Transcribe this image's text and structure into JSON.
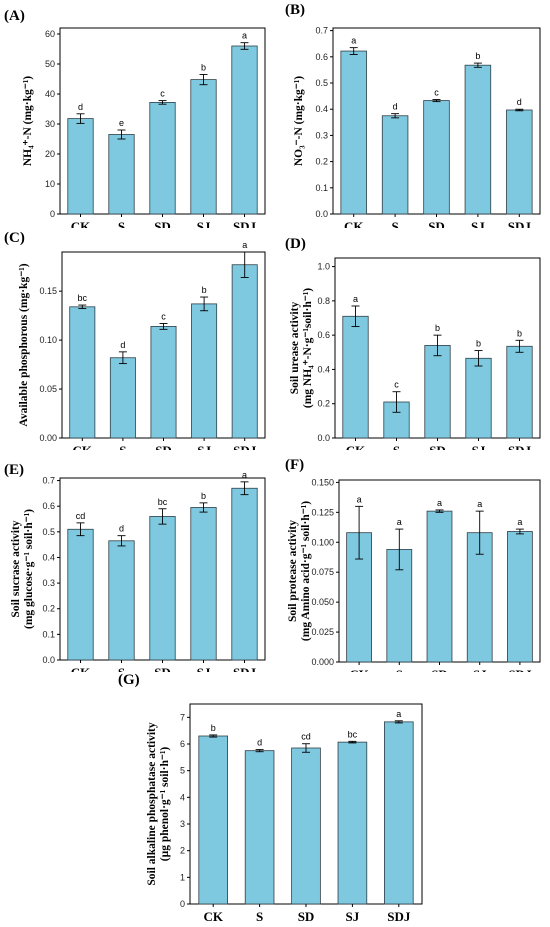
{
  "figure": {
    "bar_color": "#7EC8E0",
    "bar_edge_color": "#2F3F46",
    "axis_color": "#000000"
  },
  "chart_data": [
    {
      "panel_label": "(A)",
      "type": "bar",
      "ylabel_lines": [
        "NH₄⁺-N (mg·kg⁻¹)"
      ],
      "categories": [
        "CK",
        "S",
        "SD",
        "SJ",
        "SDJ"
      ],
      "values": [
        31.8,
        26.5,
        37.2,
        44.8,
        56.0
      ],
      "errors": [
        1.6,
        1.5,
        0.6,
        1.7,
        1.1
      ],
      "sig_letters": [
        "d",
        "e",
        "c",
        "b",
        "a"
      ],
      "ylim": [
        0,
        62
      ],
      "yticks": [
        0,
        10,
        20,
        30,
        40,
        50,
        60
      ],
      "ytick_labels": [
        "0",
        "10",
        "20",
        "30",
        "40",
        "50",
        "60"
      ],
      "grid": false
    },
    {
      "panel_label": "(B)",
      "type": "bar",
      "ylabel_lines": [
        "NO₃⁻-N (mg·kg⁻¹)"
      ],
      "categories": [
        "CK",
        "S",
        "SD",
        "SJ",
        "SDJ"
      ],
      "values": [
        0.622,
        0.375,
        0.433,
        0.568,
        0.397
      ],
      "errors": [
        0.013,
        0.008,
        0.004,
        0.008,
        0.003
      ],
      "sig_letters": [
        "a",
        "d",
        "c",
        "b",
        "d"
      ],
      "ylim": [
        0,
        0.71
      ],
      "yticks": [
        0.0,
        0.1,
        0.2,
        0.3,
        0.4,
        0.5,
        0.6,
        0.7
      ],
      "ytick_labels": [
        "0.0",
        "0.1",
        "0.2",
        "0.3",
        "0.4",
        "0.5",
        "0.6",
        "0.7"
      ],
      "grid": false
    },
    {
      "panel_label": "(C)",
      "type": "bar",
      "ylabel_lines": [
        "Available phosphorous (mg·kg⁻¹)"
      ],
      "categories": [
        "CK",
        "S",
        "SD",
        "SJ",
        "SDJ"
      ],
      "values": [
        0.134,
        0.082,
        0.114,
        0.137,
        0.177
      ],
      "errors": [
        0.0018,
        0.006,
        0.003,
        0.007,
        0.013
      ],
      "sig_letters": [
        "bc",
        "d",
        "c",
        "b",
        "a"
      ],
      "ylim": [
        0,
        0.19
      ],
      "yticks": [
        0.0,
        0.05,
        0.1,
        0.15
      ],
      "ytick_labels": [
        "0.00",
        "0.05",
        "0.10",
        "0.15"
      ],
      "grid": false
    },
    {
      "panel_label": "(D)",
      "type": "bar",
      "ylabel_lines": [
        "Soil urease activity",
        "(mg NH₄⁺-N·g⁻¹soil·h⁻¹)"
      ],
      "categories": [
        "CK",
        "S",
        "SD",
        "SJ",
        "SDJ"
      ],
      "values": [
        0.71,
        0.21,
        0.54,
        0.465,
        0.535
      ],
      "errors": [
        0.06,
        0.06,
        0.06,
        0.045,
        0.035
      ],
      "sig_letters": [
        "a",
        "c",
        "b",
        "b",
        "b"
      ],
      "ylim": [
        0,
        1.05
      ],
      "yticks": [
        0.0,
        0.2,
        0.4,
        0.6,
        0.8,
        1.0
      ],
      "ytick_labels": [
        "0.0",
        "0.2",
        "0.4",
        "0.6",
        "0.8",
        "1.0"
      ],
      "grid": false
    },
    {
      "panel_label": "(E)",
      "type": "bar",
      "ylabel_lines": [
        "Soil sucrase activity",
        "(mg glucose·g⁻¹ soil·h⁻¹)"
      ],
      "categories": [
        "CK",
        "S",
        "SD",
        "SJ",
        "SDJ"
      ],
      "values": [
        0.51,
        0.465,
        0.56,
        0.595,
        0.67
      ],
      "errors": [
        0.025,
        0.02,
        0.03,
        0.018,
        0.025
      ],
      "sig_letters": [
        "cd",
        "d",
        "bc",
        "b",
        "a"
      ],
      "ylim": [
        0,
        0.71
      ],
      "yticks": [
        0.0,
        0.1,
        0.2,
        0.3,
        0.4,
        0.5,
        0.6,
        0.7
      ],
      "ytick_labels": [
        "0.0",
        "0.1",
        "0.2",
        "0.3",
        "0.4",
        "0.5",
        "0.6",
        "0.7"
      ],
      "grid": false
    },
    {
      "panel_label": "(F)",
      "type": "bar",
      "ylabel_lines": [
        "Soil protease activity",
        "(mg Amino acid·g⁻¹ soil·h⁻¹)"
      ],
      "categories": [
        "CK",
        "S",
        "SD",
        "SJ",
        "SDJ"
      ],
      "values": [
        0.108,
        0.094,
        0.126,
        0.108,
        0.109
      ],
      "errors": [
        0.022,
        0.017,
        0.001,
        0.018,
        0.002
      ],
      "sig_letters": [
        "a",
        "a",
        "a",
        "a",
        "a"
      ],
      "ylim": [
        0,
        0.152
      ],
      "yticks": [
        0.0,
        0.025,
        0.05,
        0.075,
        0.1,
        0.125,
        0.15
      ],
      "ytick_labels": [
        "0.000",
        "0.025",
        "0.050",
        "0.075",
        "0.100",
        "0.125",
        "0.150"
      ],
      "grid": false
    },
    {
      "panel_label": "(G)",
      "type": "bar",
      "ylabel_lines": [
        "Soil alkaline phosphatase activity",
        "(µg phenol·g⁻¹ soil·h⁻¹)"
      ],
      "categories": [
        "CK",
        "S",
        "SD",
        "SJ",
        "SDJ"
      ],
      "values": [
        6.3,
        5.75,
        5.85,
        6.07,
        6.83
      ],
      "errors": [
        0.04,
        0.04,
        0.16,
        0.03,
        0.04
      ],
      "sig_letters": [
        "b",
        "d",
        "cd",
        "bc",
        "a"
      ],
      "ylim": [
        0,
        7.5
      ],
      "yticks": [
        0,
        1,
        2,
        3,
        4,
        5,
        6,
        7
      ],
      "ytick_labels": [
        "0",
        "1",
        "2",
        "3",
        "4",
        "5",
        "6",
        "7"
      ],
      "grid": false
    }
  ]
}
